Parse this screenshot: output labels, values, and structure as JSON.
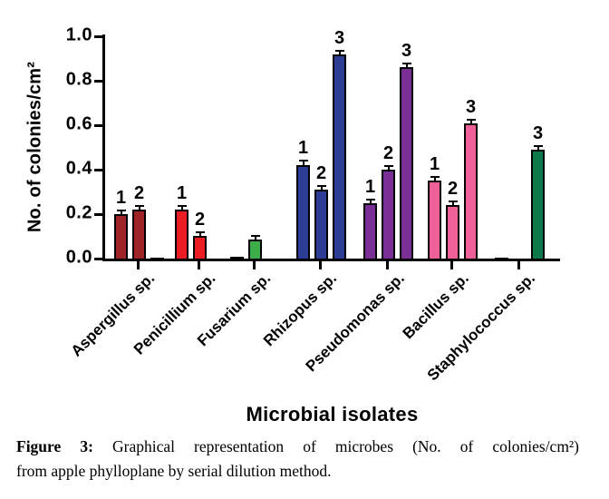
{
  "chart_data": {
    "type": "bar",
    "title": "",
    "xlabel": "Microbial isolates",
    "ylabel": "No. of colonies/cm²",
    "ylim": [
      0,
      1.0
    ],
    "yticks": [
      "0.0",
      "0.2",
      "0.4",
      "0.6",
      "0.8",
      "1.0"
    ],
    "grid": false,
    "legend": "none",
    "categories": [
      "Aspergillus sp.",
      "Penicillium sp.",
      "Fusarium sp.",
      "Rhizopus sp.",
      "Pseudomonas sp.",
      "Bacillus sp.",
      "Staphylococcus sp."
    ],
    "series_note": "three serial-dilution bars (1,2,3) per microbial isolate; error bars shown on top",
    "groups": [
      {
        "name": "Aspergillus sp.",
        "color": "#9E2428",
        "bars": [
          {
            "series": "1",
            "value": 0.2,
            "label": "1",
            "error": 0.008
          },
          {
            "series": "2",
            "value": 0.22,
            "label": "2",
            "error": 0.008
          },
          {
            "series": "3",
            "value": 0.005,
            "label": "",
            "error": 0
          }
        ]
      },
      {
        "name": "Penicillium sp.",
        "color": "#EC1C24",
        "bars": [
          {
            "series": "1",
            "value": 0.22,
            "label": "1",
            "error": 0.012
          },
          {
            "series": "2",
            "value": 0.1,
            "label": "2",
            "error": 0.012
          },
          {
            "series": "3",
            "value": 0,
            "label": "",
            "error": 0
          }
        ]
      },
      {
        "name": "Fusarium sp.",
        "color": "#3BAE49",
        "bars": [
          {
            "series": "1",
            "value": 0.01,
            "label": "",
            "error": 0
          },
          {
            "series": "2",
            "value": 0.085,
            "label": "",
            "error": 0.008
          },
          {
            "series": "3",
            "value": 0,
            "label": "",
            "error": 0
          }
        ]
      },
      {
        "name": "Rhizopus sp.",
        "color": "#2D3C94",
        "bars": [
          {
            "series": "1",
            "value": 0.42,
            "label": "1",
            "error": 0.015
          },
          {
            "series": "2",
            "value": 0.31,
            "label": "2",
            "error": 0.008
          },
          {
            "series": "3",
            "value": 0.92,
            "label": "3",
            "error": 0.008
          }
        ]
      },
      {
        "name": "Pseudomonas sp.",
        "color": "#7A2E96",
        "bars": [
          {
            "series": "1",
            "value": 0.25,
            "label": "1",
            "error": 0.012
          },
          {
            "series": "2",
            "value": 0.4,
            "label": "2",
            "error": 0.01
          },
          {
            "series": "3",
            "value": 0.86,
            "label": "3",
            "error": 0.012
          }
        ]
      },
      {
        "name": "Bacillus sp.",
        "color": "#EF5F98",
        "bars": [
          {
            "series": "1",
            "value": 0.35,
            "label": "1",
            "error": 0.008
          },
          {
            "series": "2",
            "value": 0.24,
            "label": "2",
            "error": 0.012
          },
          {
            "series": "3",
            "value": 0.61,
            "label": "3",
            "error": 0.008
          }
        ]
      },
      {
        "name": "Staphylococcus sp.",
        "color": "#0E7A4B",
        "bars": [
          {
            "series": "1",
            "value": 0.005,
            "label": "",
            "error": 0
          },
          {
            "series": "2",
            "value": 0,
            "label": "",
            "error": 0
          },
          {
            "series": "3",
            "value": 0.49,
            "label": "3",
            "error": 0.008
          }
        ]
      }
    ]
  },
  "caption": {
    "figure_label": "Figure 3:",
    "line1_rest": "Graphical representation of microbes (No. of colonies/cm²)",
    "line2": "from apple phylloplane by serial dilution method."
  }
}
